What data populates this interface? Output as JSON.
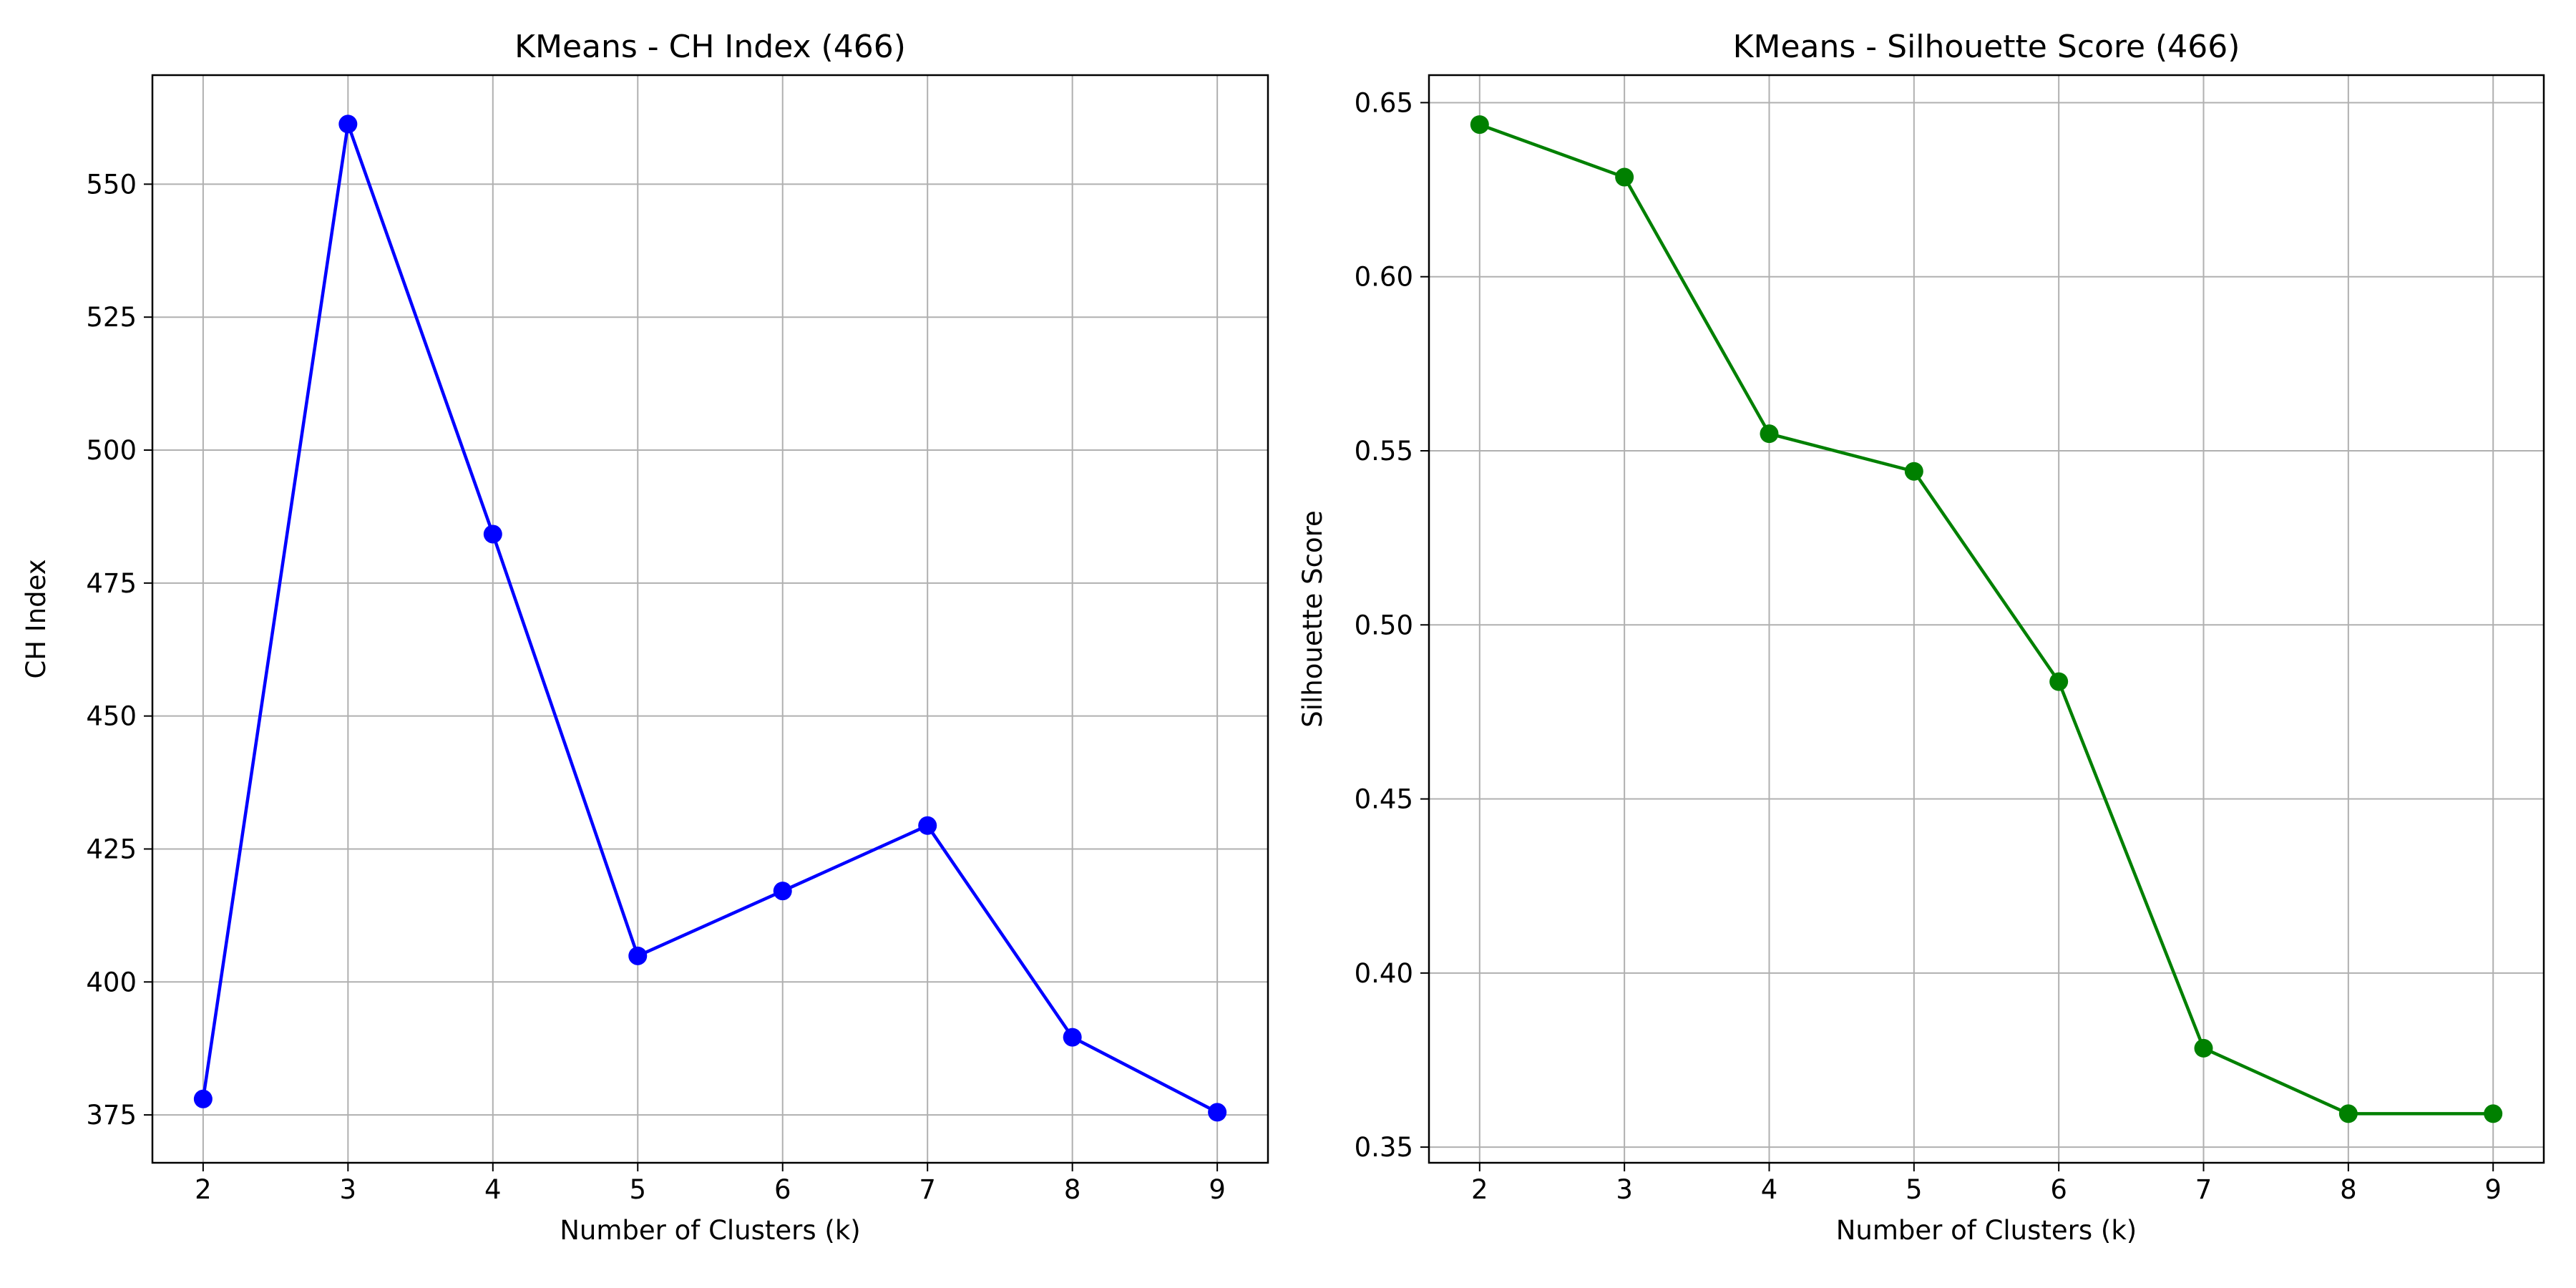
{
  "chart_data": [
    {
      "type": "line",
      "title": "KMeans - CH Index (466)",
      "xlabel": "Number of Clusters (k)",
      "ylabel": "CH Index",
      "x": [
        2,
        3,
        4,
        5,
        6,
        7,
        8,
        9
      ],
      "series": [
        {
          "values": [
            378.0,
            561.3,
            484.2,
            404.9,
            417.1,
            429.4,
            389.6,
            375.5
          ],
          "color": "#0000ff",
          "marker": "circle"
        }
      ],
      "xlim": [
        1.65,
        9.35
      ],
      "ylim": [
        366.0,
        570.5
      ],
      "xticks": [
        2,
        3,
        4,
        5,
        6,
        7,
        8,
        9
      ],
      "yticks": [
        375,
        400,
        425,
        450,
        475,
        500,
        525,
        550
      ],
      "ytick_labels": [
        "375",
        "400",
        "425",
        "450",
        "475",
        "500",
        "525",
        "550"
      ],
      "grid": true
    },
    {
      "type": "line",
      "title": "KMeans - Silhouette Score (466)",
      "xlabel": "Number of Clusters (k)",
      "ylabel": "Silhouette Score",
      "x": [
        2,
        3,
        4,
        5,
        6,
        7,
        8,
        9
      ],
      "series": [
        {
          "values": [
            0.6437,
            0.6286,
            0.5549,
            0.5441,
            0.4837,
            0.3784,
            0.3596,
            0.3596
          ],
          "color": "#008000",
          "marker": "circle"
        }
      ],
      "xlim": [
        1.65,
        9.35
      ],
      "ylim": [
        0.3455,
        0.6579
      ],
      "xticks": [
        2,
        3,
        4,
        5,
        6,
        7,
        8,
        9
      ],
      "yticks": [
        0.35,
        0.4,
        0.45,
        0.5,
        0.55,
        0.6,
        0.65
      ],
      "ytick_labels": [
        "0.35",
        "0.40",
        "0.45",
        "0.50",
        "0.55",
        "0.60",
        "0.65"
      ],
      "grid": true
    }
  ]
}
